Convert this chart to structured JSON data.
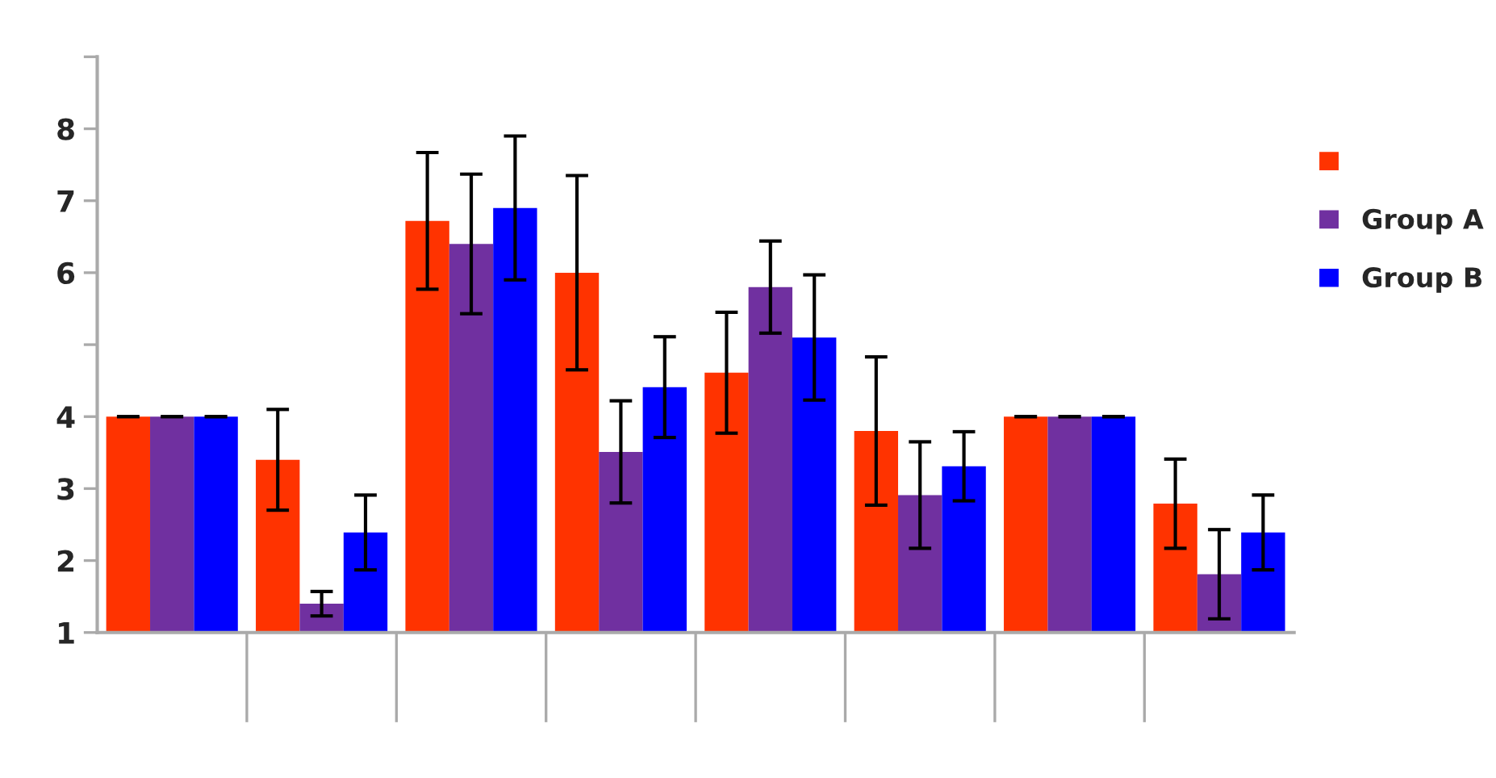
{
  "chart_data": {
    "type": "bar",
    "categories": [
      null,
      null,
      null,
      null,
      null,
      null,
      null,
      null
    ],
    "series": [
      {
        "color": "#ff3300",
        "values": [
          4.0,
          3.4,
          6.72,
          6.0,
          4.61,
          3.8,
          4.0,
          2.79
        ],
        "errors": [
          0,
          0.7,
          0.95,
          1.35,
          0.84,
          1.03,
          0,
          0.62
        ]
      },
      {
        "name": "Group A",
        "color": "#7030a0",
        "values": [
          4.0,
          1.4,
          6.4,
          3.51,
          5.8,
          2.91,
          4.0,
          1.81
        ],
        "errors": [
          0,
          0.17,
          0.97,
          0.71,
          0.64,
          0.74,
          0,
          0.62
        ]
      },
      {
        "name": "Group B",
        "color": "#0000ff",
        "values": [
          4.0,
          2.39,
          6.9,
          4.41,
          5.1,
          3.31,
          4.0,
          2.39
        ],
        "errors": [
          0,
          0.52,
          1.0,
          0.7,
          0.87,
          0.48,
          0,
          0.52
        ]
      }
    ],
    "ylim": [
      1,
      9
    ],
    "yticks": [
      1,
      2,
      3,
      4,
      {
        "value": 5,
        "label": null
      },
      6,
      7,
      8,
      {
        "value": 9,
        "label": null
      }
    ],
    "grid": false,
    "legend": "top right"
  }
}
